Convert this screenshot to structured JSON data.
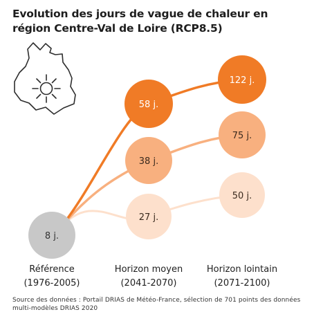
{
  "title": "Evolution des jours de vague de chaleur en région Centre-Val de Loire (RCP8.5)",
  "source": "Source des données : Portail DRIAS de Météo-France, sélection de 701 points des données multi-modèles DRIAS 2020",
  "icons": {
    "region": "centre-val-de-loire-outline-icon",
    "sun": "sun-icon"
  },
  "colors": {
    "high": "#f07b26",
    "medium": "#f8b07f",
    "low": "#fde0cc",
    "reference": "#c8c8c8"
  },
  "chart_data": {
    "type": "scatter",
    "unit": "j.",
    "categories": [
      [
        "Référence",
        "(1976-2005)"
      ],
      [
        "Horizon moyen",
        "(2041-2070)"
      ],
      [
        "Horizon lointain",
        "(2071-2100)"
      ]
    ],
    "reference": {
      "value": 8,
      "label": "8 j."
    },
    "series": [
      {
        "level": "high",
        "values": [
          8,
          58,
          122
        ],
        "labels": [
          "8 j.",
          "58 j.",
          "122 j."
        ]
      },
      {
        "level": "medium",
        "values": [
          8,
          38,
          75
        ],
        "labels": [
          "8 j.",
          "38 j.",
          "75 j."
        ]
      },
      {
        "level": "low",
        "values": [
          8,
          27,
          50
        ],
        "labels": [
          "8 j.",
          "27 j.",
          "50 j."
        ]
      }
    ]
  }
}
